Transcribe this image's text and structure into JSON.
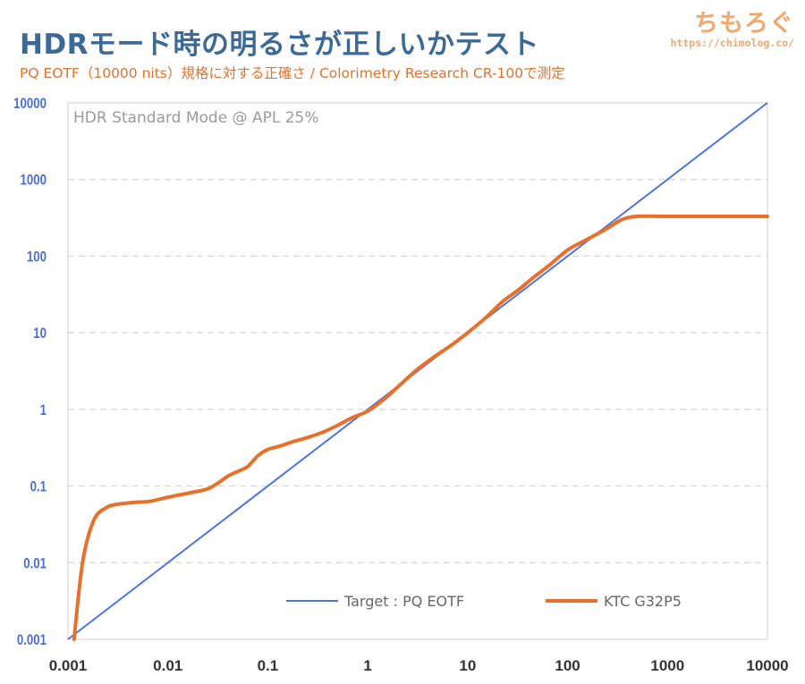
{
  "header": {
    "title": "HDRモード時の明るさが正しいかテスト",
    "subtitle": "PQ EOTF（10000 nits）規格に対する正確さ / Colorimetry Research CR-100で測定"
  },
  "brand": {
    "name": "ちもろぐ",
    "url": "https://chimolog.co/"
  },
  "chart_data": {
    "type": "line",
    "annotation": "HDR Standard Mode @ APL 25%",
    "x_scale": "log",
    "y_scale": "log",
    "xlim": [
      0.001,
      10000
    ],
    "ylim": [
      0.001,
      10000
    ],
    "x_ticks": [
      "0.001",
      "0.01",
      "0.1",
      "1",
      "10",
      "100",
      "1000",
      "10000"
    ],
    "y_ticks": [
      "0.001",
      "0.01",
      "0.1",
      "1",
      "10",
      "100",
      "1000",
      "10000"
    ],
    "grid": "horizontal dashed",
    "legend_position": "bottom",
    "colors": {
      "axis_text": "#4a6fd4",
      "target": "#4f73e3",
      "measured": "#e8702a",
      "grid": "#d9d2dc"
    },
    "series": [
      {
        "name": "Target : PQ EOTF",
        "x": [
          0.001,
          10000
        ],
        "y": [
          0.001,
          10000
        ]
      },
      {
        "name": "KTC G32P5",
        "x": [
          0.00115,
          0.0014,
          0.0018,
          0.0024,
          0.0032,
          0.0045,
          0.0065,
          0.0085,
          0.012,
          0.017,
          0.025,
          0.032,
          0.04,
          0.05,
          0.063,
          0.08,
          0.1,
          0.13,
          0.18,
          0.25,
          0.35,
          0.5,
          0.7,
          1.0,
          1.5,
          2.2,
          3.2,
          5,
          7,
          10,
          15,
          22,
          32,
          45,
          65,
          100,
          150,
          250,
          350,
          500,
          1000,
          3000,
          10000
        ],
        "y": [
          0.001,
          0.01,
          0.035,
          0.052,
          0.058,
          0.061,
          0.063,
          0.068,
          0.075,
          0.082,
          0.092,
          0.11,
          0.135,
          0.155,
          0.18,
          0.25,
          0.3,
          0.33,
          0.38,
          0.43,
          0.5,
          0.62,
          0.78,
          0.95,
          1.4,
          2.2,
          3.4,
          5.2,
          7,
          10,
          15.5,
          25,
          36,
          52,
          75,
          120,
          160,
          230,
          300,
          330,
          330,
          330,
          330
        ]
      }
    ]
  }
}
